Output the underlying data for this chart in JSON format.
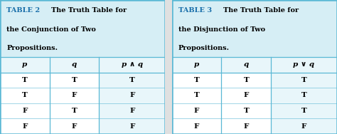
{
  "table2_title_bold": "TABLE 2",
  "table2_title_line1_rest": "  The Truth Table for",
  "table2_title_line2": "the Conjunction of Two",
  "table2_title_line3": "Propositions.",
  "table2_headers": [
    "p",
    "q",
    "p ∧ q"
  ],
  "table2_rows": [
    [
      "T",
      "T",
      "T"
    ],
    [
      "T",
      "F",
      "F"
    ],
    [
      "F",
      "T",
      "F"
    ],
    [
      "F",
      "F",
      "F"
    ]
  ],
  "table3_title_bold": "TABLE 3",
  "table3_title_line1_rest": "  The Truth Table for",
  "table3_title_line2": "the Disjunction of Two",
  "table3_title_line3": "Propositions.",
  "table3_headers": [
    "p",
    "q",
    "p ∨ q"
  ],
  "table3_rows": [
    [
      "T",
      "T",
      "T"
    ],
    [
      "T",
      "F",
      "T"
    ],
    [
      "F",
      "T",
      "T"
    ],
    [
      "F",
      "F",
      "F"
    ]
  ],
  "title_bg": "#d6eef5",
  "header_bg": "#e8f6fa",
  "col12_bg": "#ffffff",
  "col3_bg": "#e8f6fa",
  "border_color": "#5ab8d5",
  "title_color": "#1a6faa",
  "text_color": "#000000",
  "bg_color": "#e0e0e0",
  "border_lw": 1.8,
  "inner_lw": 0.9,
  "title_fontsize": 7.0,
  "header_fontsize": 7.5,
  "data_fontsize": 7.5
}
